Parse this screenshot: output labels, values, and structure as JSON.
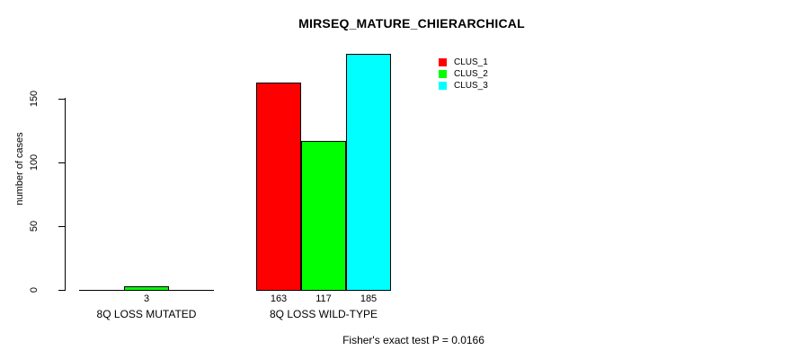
{
  "chart_data": {
    "type": "bar",
    "title": "MIRSEQ_MATURE_CHIERARCHICAL",
    "ylabel": "number of cases",
    "xlabel": "",
    "categories": [
      "8Q LOSS MUTATED",
      "8Q LOSS WILD-TYPE"
    ],
    "series": [
      {
        "name": "CLUS_1",
        "color": "#ff0000",
        "values": [
          0,
          163
        ]
      },
      {
        "name": "CLUS_2",
        "color": "#00ff00",
        "values": [
          3,
          117
        ]
      },
      {
        "name": "CLUS_3",
        "color": "#00ffff",
        "values": [
          0,
          185
        ]
      }
    ],
    "yticks": [
      0,
      50,
      100,
      150
    ],
    "ylim": [
      0,
      185
    ],
    "bar_value_labels_shown": true,
    "grid": false,
    "legend_position": "top-right",
    "annotation": "Fisher's exact test P = 0.0166"
  },
  "colors": {
    "axis": "#000000",
    "text": "#000000",
    "background": "#ffffff"
  }
}
